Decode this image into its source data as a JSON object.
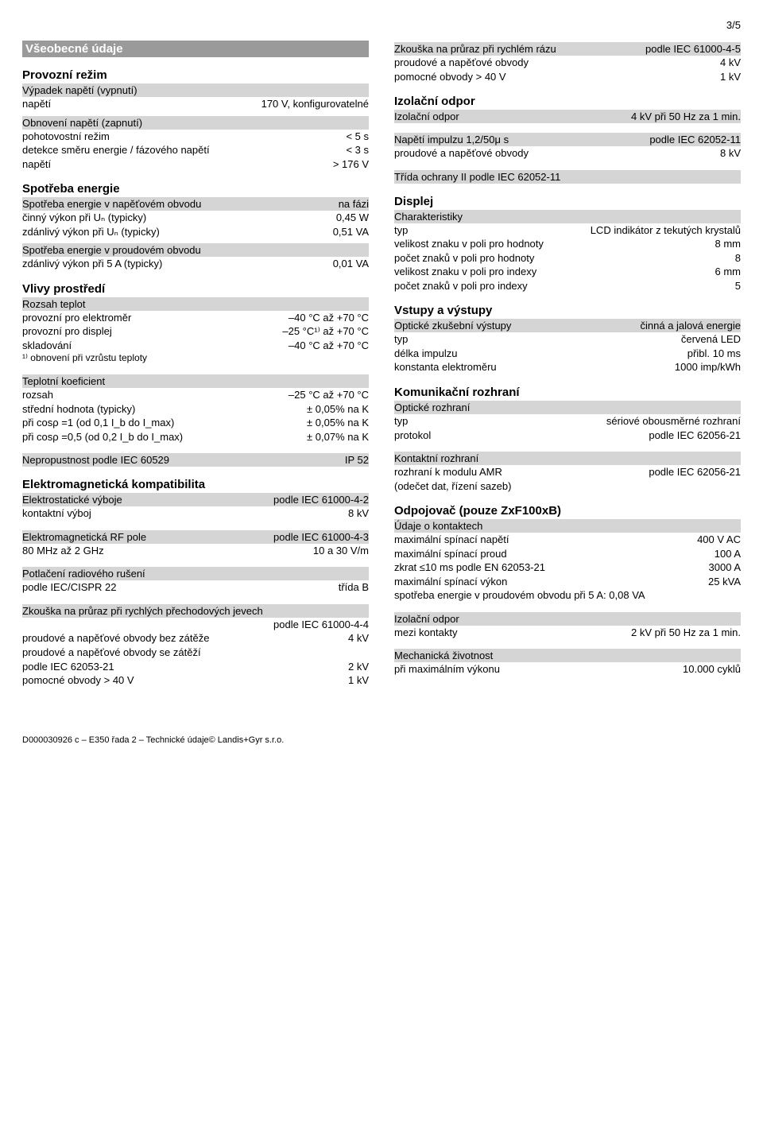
{
  "page_number": "3/5",
  "left": {
    "general": {
      "title": "Všeobecné údaje",
      "operating_mode": {
        "title": "Provozní režim",
        "outage": {
          "header": "Výpadek napětí (vypnutí)",
          "rows": [
            {
              "label": "napětí",
              "value": "170 V, konfigurovatelné"
            }
          ]
        },
        "restore": {
          "header": "Obnovení napětí (zapnutí)",
          "rows": [
            {
              "label": "pohotovostní režim",
              "value": "< 5 s"
            },
            {
              "label": "detekce směru energie / fázového napětí",
              "value": "< 3 s"
            },
            {
              "label": "napětí",
              "value": "> 176 V"
            }
          ]
        }
      },
      "consumption": {
        "title": "Spotřeba energie",
        "voltage": {
          "header_l": "Spotřeba energie v napěťovém obvodu",
          "header_r": "na fázi",
          "rows": [
            {
              "label": "činný výkon při Uₙ (typicky)",
              "value": "0,45 W"
            },
            {
              "label": "zdánlivý výkon při Uₙ (typicky)",
              "value": "0,51 VA"
            }
          ]
        },
        "current": {
          "header": "Spotřeba energie v proudovém obvodu",
          "rows": [
            {
              "label": "zdánlivý výkon při 5 A (typicky)",
              "value": "0,01 VA"
            }
          ]
        }
      },
      "env": {
        "title": "Vlivy prostředí",
        "temp": {
          "header": "Rozsah teplot",
          "rows": [
            {
              "label": "provozní pro elektroměr",
              "value": "–40 °C až +70 °C"
            },
            {
              "label": "provozní pro displej",
              "value": "–25 °C¹⁾ až +70 °C"
            },
            {
              "label": "skladování",
              "value": "–40 °C až +70 °C"
            }
          ],
          "footnote": "¹⁾  obnovení při vzrůstu teploty"
        },
        "coef": {
          "header": "Teplotní koeficient",
          "rows": [
            {
              "label": "rozsah",
              "value": "–25 °C až +70 °C"
            },
            {
              "label": "střední hodnota (typicky)",
              "value": "± 0,05% na K"
            },
            {
              "label": "při cosρ =1    (od 0,1 I_b do I_max)",
              "value": "± 0,05% na K"
            },
            {
              "label": "při cosρ =0,5 (od 0,2 I_b do I_max)",
              "value": "± 0,07% na K"
            }
          ]
        },
        "ip": {
          "header_l": "Nepropustnost podle IEC 60529",
          "header_r": "IP 52"
        }
      },
      "emc": {
        "title": "Elektromagnetická kompatibilita",
        "esd": {
          "header_l": "Elektrostatické výboje",
          "header_r": "podle IEC 61000-4-2",
          "rows": [
            {
              "label": "kontaktní výboj",
              "value": "8 kV"
            }
          ]
        },
        "rf": {
          "header_l": "Elektromagnetická RF pole",
          "header_r": "podle IEC 61000-4-3",
          "rows": [
            {
              "label": "80 MHz až 2 GHz",
              "value": "10 a 30 V/m"
            }
          ]
        },
        "radio": {
          "header": "Potlačení radiového rušení",
          "rows": [
            {
              "label": "podle IEC/CISPR 22",
              "value": "třída B"
            }
          ]
        },
        "burst": {
          "header": "Zkouška na průraz při rychlých přechodových jevech",
          "header_r": "podle IEC 61000-4-4",
          "rows": [
            {
              "label": "proudové a napěťové obvody bez zátěže",
              "value": "4 kV"
            },
            {
              "label": "proudové a napěťové obvody se zátěží",
              "value": ""
            },
            {
              "label": "podle IEC 62053-21",
              "value": "2 kV"
            },
            {
              "label": "pomocné obvody > 40 V",
              "value": "1 kV"
            }
          ]
        }
      }
    }
  },
  "right": {
    "surge": {
      "header_l": "Zkouška na průraz při rychlém rázu",
      "header_r": "podle IEC 61000-4-5",
      "rows": [
        {
          "label": "proudové a napěťové obvody",
          "value": "4 kV"
        },
        {
          "label": "pomocné obvody > 40 V",
          "value": "1 kV"
        }
      ]
    },
    "insulation": {
      "title": "Izolační odpor",
      "header_l": "Izolační odpor",
      "header_r": "4 kV při 50 Hz za 1 min.",
      "impulse": {
        "header_l": " Napětí impulzu 1,2/50μ s",
        "header_r": "podle IEC 62052-11",
        "rows": [
          {
            "label": "proudové a napěťové obvody",
            "value": "8 kV"
          }
        ]
      },
      "class": {
        "header": "Třída ochrany II podle IEC 62052-11"
      }
    },
    "display": {
      "title": "Displej",
      "char": {
        "header": "Charakteristiky",
        "rows": [
          {
            "label": "typ",
            "value": "LCD indikátor z tekutých krystalů"
          },
          {
            "label": "velikost znaku v poli pro hodnoty",
            "value": "8 mm"
          },
          {
            "label": "počet znaků v poli pro hodnoty",
            "value": "8"
          },
          {
            "label": "velikost znaku v poli pro indexy",
            "value": "6 mm"
          },
          {
            "label": "počet znaků v poli pro indexy",
            "value": "5"
          }
        ]
      }
    },
    "io": {
      "title": "Vstupy a výstupy",
      "opt": {
        "header_l": "Optické zkušební výstupy",
        "header_r": "činná a jalová energie",
        "rows": [
          {
            "label": "typ",
            "value": "červená LED"
          },
          {
            "label": "délka impulzu",
            "value": "přibl. 10 ms"
          },
          {
            "label": "konstanta elektroměru",
            "value": "1000 imp/kWh"
          }
        ]
      }
    },
    "comm": {
      "title": "Komunikační rozhraní",
      "opt": {
        "header": "Optické rozhraní",
        "rows": [
          {
            "label": "typ",
            "value": "sériové obousměrné rozhraní"
          },
          {
            "label": "protokol",
            "value": "podle IEC 62056-21"
          }
        ]
      },
      "contact": {
        "header": "Kontaktní rozhraní",
        "rows": [
          {
            "label": "rozhraní k modulu AMR",
            "value": "podle IEC 62056-21"
          },
          {
            "label": "(odečet dat, řízení sazeb)",
            "value": ""
          }
        ]
      }
    },
    "disconnector": {
      "title": "Odpojovač (pouze ZxF100xB)",
      "contacts": {
        "header": "Údaje o kontaktech",
        "rows": [
          {
            "label": "maximální spínací napětí",
            "value": "400 V AC"
          },
          {
            "label": "maximální spínací proud",
            "value": "100 A"
          },
          {
            "label": "zkrat ≤10 ms podle EN 62053-21",
            "value": "3000 A"
          },
          {
            "label": "maximální spínací výkon",
            "value": "25 kVA"
          },
          {
            "label": "spotřeba energie v proudovém obvodu při 5 A: 0,08 VA",
            "value": ""
          }
        ]
      },
      "ins": {
        "header": "Izolační odpor",
        "rows": [
          {
            "label": "mezi kontakty",
            "value": "2 kV při 50 Hz za 1 min."
          }
        ]
      },
      "mech": {
        "header": "Mechanická životnost",
        "rows": [
          {
            "label": "při maximálním výkonu",
            "value": "10.000 cyklů"
          }
        ]
      }
    }
  },
  "footer": "D000030926 c – E350 řada 2 – Technické údaje© Landis+Gyr s.r.o."
}
